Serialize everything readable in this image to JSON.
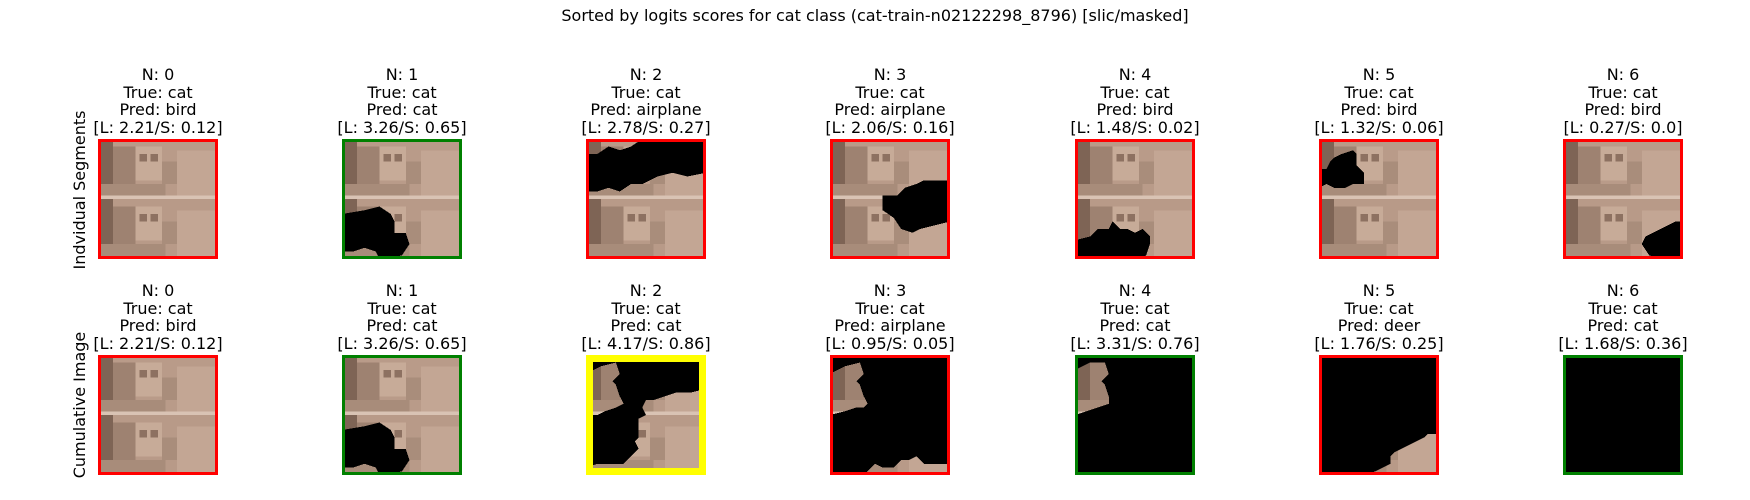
{
  "title": "Sorted by logits scores for cat class (cat-train-n02122298_8796) [slic/masked]",
  "row_labels": [
    "Indvidual Segments",
    "Cumulative Image"
  ],
  "colors": {
    "correct": "#008000",
    "wrong": "#ff0000",
    "best": "#ffff00",
    "background": "#ffffff"
  },
  "rows": [
    [
      {
        "n": "N: 0",
        "true_label": "True: cat",
        "pred": "Pred: bird",
        "score": "[L: 2.21/S: 0.12]",
        "status": "wrong",
        "mask": []
      },
      {
        "n": "N: 1",
        "true_label": "True: cat",
        "pred": "Pred: cat",
        "score": "[L: 3.26/S: 0.65]",
        "status": "correct",
        "mask": [
          "bottom-left"
        ]
      },
      {
        "n": "N: 2",
        "true_label": "True: cat",
        "pred": "Pred: airplane",
        "score": "[L: 2.78/S: 0.27]",
        "status": "wrong",
        "mask": [
          "top-right-band"
        ]
      },
      {
        "n": "N: 3",
        "true_label": "True: cat",
        "pred": "Pred: airplane",
        "score": "[L: 2.06/S: 0.16]",
        "status": "wrong",
        "mask": [
          "mid-right"
        ]
      },
      {
        "n": "N: 4",
        "true_label": "True: cat",
        "pred": "Pred: bird",
        "score": "[L: 1.48/S: 0.02]",
        "status": "wrong",
        "mask": [
          "bottom-center"
        ]
      },
      {
        "n": "N: 5",
        "true_label": "True: cat",
        "pred": "Pred: bird",
        "score": "[L: 1.32/S: 0.06]",
        "status": "wrong",
        "mask": [
          "left-upper"
        ]
      },
      {
        "n": "N: 6",
        "true_label": "True: cat",
        "pred": "Pred: bird",
        "score": "[L: 0.27/S: 0.0]",
        "status": "wrong",
        "mask": [
          "bottom-right"
        ]
      }
    ],
    [
      {
        "n": "N: 0",
        "true_label": "True: cat",
        "pred": "Pred: bird",
        "score": "[L: 2.21/S: 0.12]",
        "status": "wrong",
        "mask": []
      },
      {
        "n": "N: 1",
        "true_label": "True: cat",
        "pred": "Pred: cat",
        "score": "[L: 3.26/S: 0.65]",
        "status": "correct",
        "mask": [
          "bottom-left"
        ]
      },
      {
        "n": "N: 2",
        "true_label": "True: cat",
        "pred": "Pred: cat",
        "score": "[L: 4.17/S: 0.86]",
        "status": "best",
        "mask": [
          "cum-2"
        ]
      },
      {
        "n": "N: 3",
        "true_label": "True: cat",
        "pred": "Pred: airplane",
        "score": "[L: 0.95/S: 0.05]",
        "status": "wrong",
        "mask": [
          "cum-3"
        ]
      },
      {
        "n": "N: 4",
        "true_label": "True: cat",
        "pred": "Pred: cat",
        "score": "[L: 3.31/S: 0.76]",
        "status": "correct",
        "mask": [
          "cum-4"
        ]
      },
      {
        "n": "N: 5",
        "true_label": "True: cat",
        "pred": "Pred: deer",
        "score": "[L: 1.76/S: 0.25]",
        "status": "wrong",
        "mask": [
          "cum-5"
        ]
      },
      {
        "n": "N: 6",
        "true_label": "True: cat",
        "pred": "Pred: cat",
        "score": "[L: 1.68/S: 0.36]",
        "status": "correct",
        "mask": [
          "all"
        ]
      }
    ]
  ]
}
